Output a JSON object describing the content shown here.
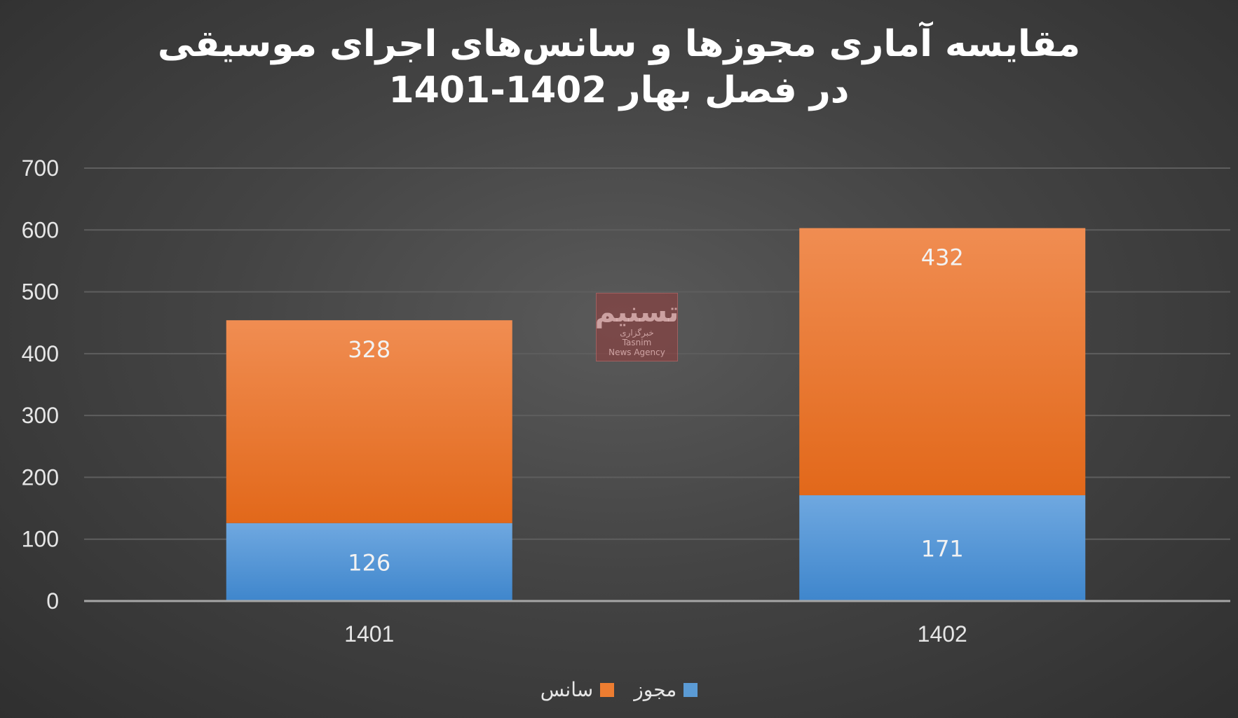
{
  "chart_data": {
    "type": "bar",
    "stacked": true,
    "title_lines": [
      "مقایسه آماری مجوزها و سانس‌های اجرای موسیقی",
      "در فصل بهار 1402-1401"
    ],
    "categories": [
      "1401",
      "1402"
    ],
    "series": [
      {
        "name": "مجوز",
        "values": [
          126,
          171
        ],
        "color": "#5b9bd5"
      },
      {
        "name": "سانس",
        "values": [
          328,
          432
        ],
        "color": "#ed7d31"
      }
    ],
    "ylim": [
      0,
      700
    ],
    "yticks": [
      0,
      100,
      200,
      300,
      400,
      500,
      600,
      700
    ],
    "grid": true,
    "legend_position": "bottom"
  },
  "watermark": {
    "logo_text": "تسنیم",
    "sub_text_fa": "خبرگزاری",
    "sub_text_en": "Tasnim",
    "sub_text_en2": "News Agency"
  },
  "colors": {
    "background": "#444444",
    "grid": "#5e5e5e",
    "axis": "#a6a6a6"
  }
}
